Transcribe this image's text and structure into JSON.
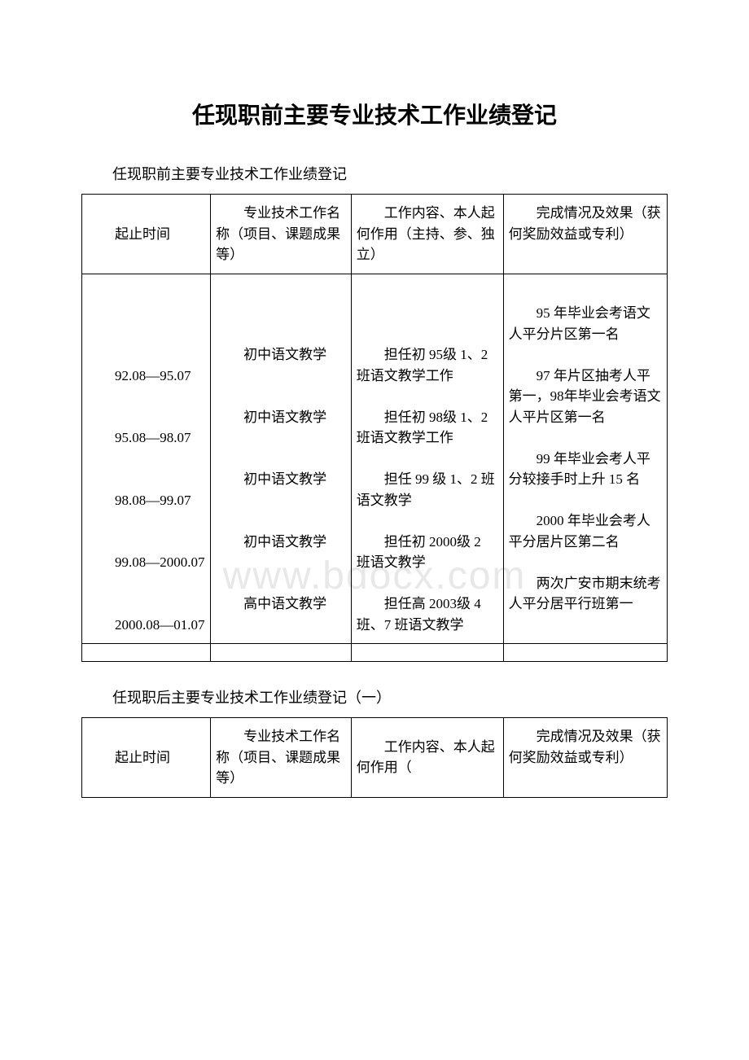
{
  "title": "任现职前主要专业技术工作业绩登记",
  "subtitle1": "任现职前主要专业技术工作业绩登记",
  "subtitle2": "任现职后主要专业技术工作业绩登记（一）",
  "watermark": "www.bdocx.com",
  "table1": {
    "headers": {
      "c1": "起止时间",
      "c2": "　　专业技术工作名称（项目、课题成果等）",
      "c3": "　　工作内容、本人起何作用（主持、参、独立）",
      "c4": "　　完成情况及效果（获何奖励效益或专利）"
    },
    "body": {
      "c1": "\n\n\n\n　　92.08—95.07\n\n\n　　95.08—98.07\n\n\n　　98.08—99.07\n\n\n　　99.08—2000.07\n\n\n　　2000.08—01.07",
      "c2": "\n\n\n　　初中语文教学\n\n\n　　初中语文教学\n\n\n　　初中语文教学\n\n\n　　初中语文教学\n\n\n　　高中语文教学",
      "c3": "\n\n\n　　担任初 95级 1、2 班语文教学工作\n\n　　担任初 98级 1、2 班语文教学工作\n\n　　担任 99 级 1、2 班语文教学\n\n　　担任初 2000级 2 班语文教学\n\n　　担任高 2003级 4 班、7 班语文教学",
      "c4": "\n　　95 年毕业会考语文人平分片区第一名\n\n　　97 年片区抽考人平第一，98年毕业会考语文人平片区第一名\n\n　　99 年毕业会考人平分较接手时上升 15 名\n\n　　2000 年毕业会考人平分居片区第二名\n\n　　两次广安市期末统考人平分居平行班第一"
    }
  },
  "table2": {
    "headers": {
      "c1": "起止时间",
      "c2": "　　专业技术工作名称（项目、课题成果等）",
      "c3": "　　工作内容、本人起何作用（",
      "c4": "　　完成情况及效果（获何奖励效益或专利）"
    }
  },
  "colors": {
    "text": "#000000",
    "background": "#ffffff",
    "border": "#000000",
    "watermark": "#e8e8e8"
  },
  "fonts": {
    "title_size": 28,
    "subtitle_size": 18,
    "cell_size": 17
  }
}
